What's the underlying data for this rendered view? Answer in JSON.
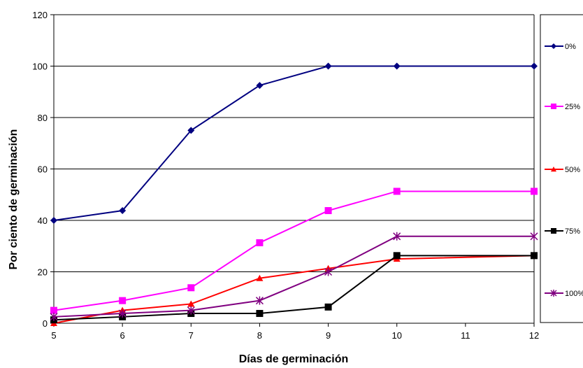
{
  "chart_data": {
    "type": "line",
    "title": "",
    "xlabel": "Días de germinación",
    "ylabel": "Por ciento de germinación",
    "xlim": [
      5,
      12
    ],
    "ylim": [
      0,
      120
    ],
    "x_ticks": [
      5,
      6,
      7,
      8,
      9,
      10,
      11,
      12
    ],
    "y_ticks": [
      0,
      20,
      40,
      60,
      80,
      100,
      120
    ],
    "grid": "horizontal",
    "legend_position": "right",
    "x": [
      5,
      6,
      7,
      8,
      9,
      10,
      12
    ],
    "series": [
      {
        "name": "0%",
        "color": "#000080",
        "marker": "diamond",
        "values": [
          40,
          43.8,
          75,
          92.5,
          100,
          100,
          100
        ]
      },
      {
        "name": "25%",
        "color": "#ff00ff",
        "marker": "square",
        "values": [
          5,
          8.8,
          13.8,
          31.3,
          43.8,
          51.3,
          51.3
        ]
      },
      {
        "name": "50%",
        "color": "#ff0000",
        "marker": "triangle",
        "values": [
          0,
          5,
          7.5,
          17.5,
          21.3,
          25,
          26.3
        ]
      },
      {
        "name": "75%",
        "color": "#000000",
        "marker": "square",
        "values": [
          1.3,
          2.5,
          3.8,
          3.8,
          6.3,
          26.3,
          26.3
        ]
      },
      {
        "name": "100%",
        "color": "#800080",
        "marker": "star",
        "values": [
          2.5,
          3.8,
          5,
          8.8,
          20,
          33.8,
          33.8
        ]
      }
    ]
  }
}
